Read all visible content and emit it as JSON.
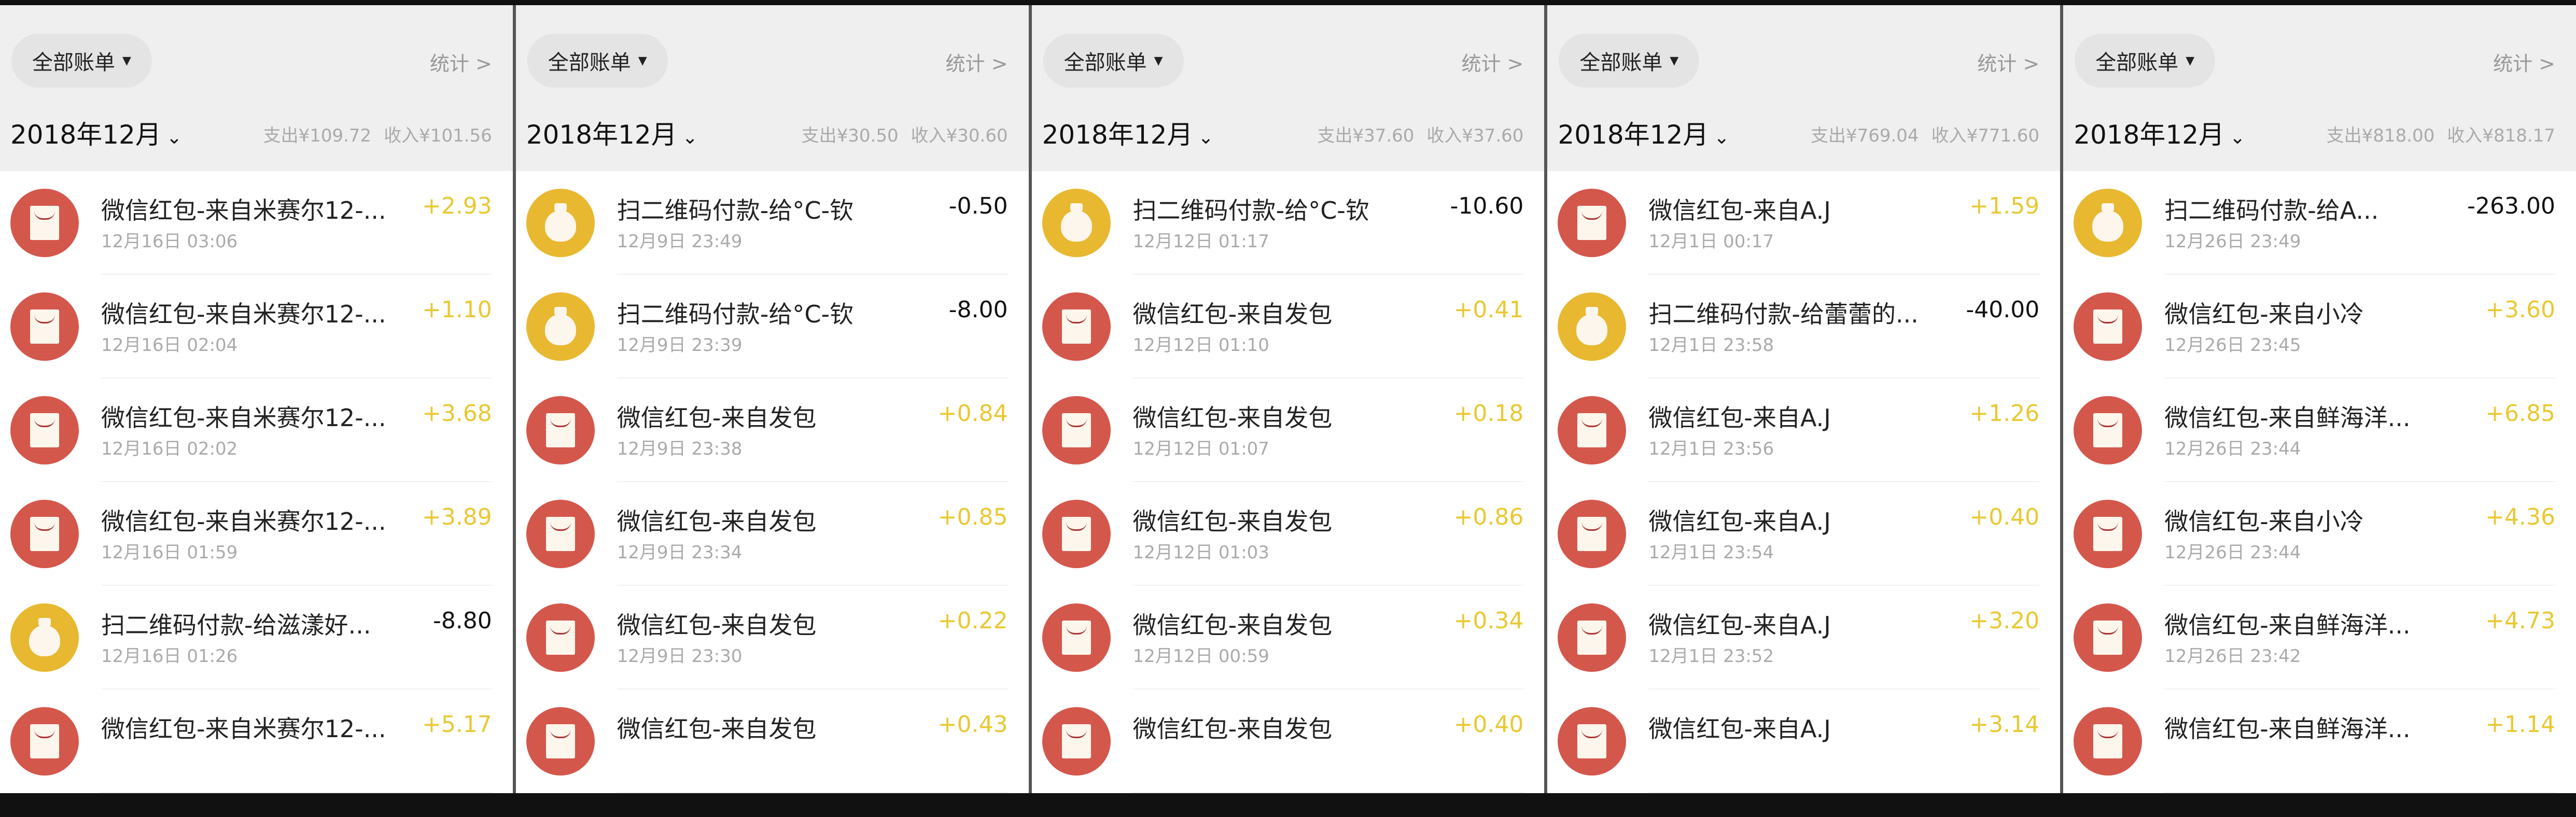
{
  "colors": {
    "income": "#e9c830",
    "expense": "#111111",
    "red_icon": "#d4574c",
    "yellow_icon": "#e8b830",
    "header_bg": "#efefef"
  },
  "panels": [
    {
      "filter": "全部账单",
      "stats": "统计 >",
      "month": "2018年12月",
      "expense": "支出¥109.72",
      "income": "收入¥101.56",
      "rows": [
        {
          "icon": "red-envelope-icon",
          "title": "微信红包-来自米赛尔12-...",
          "date": "12月16日 03:06",
          "amount": "+2.93"
        },
        {
          "icon": "red-envelope-icon",
          "title": "微信红包-来自米赛尔12-...",
          "date": "12月16日 02:04",
          "amount": "+1.10"
        },
        {
          "icon": "red-envelope-icon",
          "title": "微信红包-来自米赛尔12-...",
          "date": "12月16日 02:02",
          "amount": "+3.68"
        },
        {
          "icon": "red-envelope-icon",
          "title": "微信红包-来自米赛尔12-...",
          "date": "12月16日 01:59",
          "amount": "+3.89"
        },
        {
          "icon": "money-bag-icon",
          "title": "扫二维码付款-给滋漾好...",
          "date": "12月16日 01:26",
          "amount": "-8.80"
        },
        {
          "icon": "red-envelope-icon",
          "title": "微信红包-来自米赛尔12-...",
          "date": "",
          "amount": "+5.17"
        }
      ]
    },
    {
      "filter": "全部账单",
      "stats": "统计 >",
      "month": "2018年12月",
      "expense": "支出¥30.50",
      "income": "收入¥30.60",
      "rows": [
        {
          "icon": "money-bag-icon",
          "title": "扫二维码付款-给°C-钦",
          "date": "12月9日 23:49",
          "amount": "-0.50"
        },
        {
          "icon": "money-bag-icon",
          "title": "扫二维码付款-给°C-钦",
          "date": "12月9日 23:39",
          "amount": "-8.00"
        },
        {
          "icon": "red-envelope-icon",
          "title": "微信红包-来自发包",
          "date": "12月9日 23:38",
          "amount": "+0.84"
        },
        {
          "icon": "red-envelope-icon",
          "title": "微信红包-来自发包",
          "date": "12月9日 23:34",
          "amount": "+0.85"
        },
        {
          "icon": "red-envelope-icon",
          "title": "微信红包-来自发包",
          "date": "12月9日 23:30",
          "amount": "+0.22"
        },
        {
          "icon": "red-envelope-icon",
          "title": "微信红包-来自发包",
          "date": "",
          "amount": "+0.43"
        }
      ]
    },
    {
      "filter": "全部账单",
      "stats": "统计 >",
      "month": "2018年12月",
      "expense": "支出¥37.60",
      "income": "收入¥37.60",
      "rows": [
        {
          "icon": "money-bag-icon",
          "title": "扫二维码付款-给°C-钦",
          "date": "12月12日 01:17",
          "amount": "-10.60"
        },
        {
          "icon": "red-envelope-icon",
          "title": "微信红包-来自发包",
          "date": "12月12日 01:10",
          "amount": "+0.41"
        },
        {
          "icon": "red-envelope-icon",
          "title": "微信红包-来自发包",
          "date": "12月12日 01:07",
          "amount": "+0.18"
        },
        {
          "icon": "red-envelope-icon",
          "title": "微信红包-来自发包",
          "date": "12月12日 01:03",
          "amount": "+0.86"
        },
        {
          "icon": "red-envelope-icon",
          "title": "微信红包-来自发包",
          "date": "12月12日 00:59",
          "amount": "+0.34"
        },
        {
          "icon": "red-envelope-icon",
          "title": "微信红包-来自发包",
          "date": "",
          "amount": "+0.40"
        }
      ]
    },
    {
      "filter": "全部账单",
      "stats": "统计 >",
      "month": "2018年12月",
      "expense": "支出¥769.04",
      "income": "收入¥771.60",
      "rows": [
        {
          "icon": "red-envelope-icon",
          "title": "微信红包-来自A.J",
          "date": "12月1日 00:17",
          "amount": "+1.59"
        },
        {
          "icon": "money-bag-icon",
          "title": "扫二维码付款-给蕾蕾的...",
          "date": "12月1日 23:58",
          "amount": "-40.00"
        },
        {
          "icon": "red-envelope-icon",
          "title": "微信红包-来自A.J",
          "date": "12月1日 23:56",
          "amount": "+1.26"
        },
        {
          "icon": "red-envelope-icon",
          "title": "微信红包-来自A.J",
          "date": "12月1日 23:54",
          "amount": "+0.40"
        },
        {
          "icon": "red-envelope-icon",
          "title": "微信红包-来自A.J",
          "date": "12月1日 23:52",
          "amount": "+3.20"
        },
        {
          "icon": "red-envelope-icon",
          "title": "微信红包-来自A.J",
          "date": "",
          "amount": "+3.14"
        }
      ]
    },
    {
      "filter": "全部账单",
      "stats": "统计 >",
      "month": "2018年12月",
      "expense": "支出¥818.00",
      "income": "收入¥818.17",
      "rows": [
        {
          "icon": "money-bag-icon",
          "title": "扫二维码付款-给A...",
          "date": "12月26日 23:49",
          "amount": "-263.00"
        },
        {
          "icon": "red-envelope-icon",
          "title": "微信红包-来自小冷",
          "date": "12月26日 23:45",
          "amount": "+3.60"
        },
        {
          "icon": "red-envelope-icon",
          "title": "微信红包-来自鲜海洋...",
          "date": "12月26日 23:44",
          "amount": "+6.85"
        },
        {
          "icon": "red-envelope-icon",
          "title": "微信红包-来自小冷",
          "date": "12月26日 23:44",
          "amount": "+4.36"
        },
        {
          "icon": "red-envelope-icon",
          "title": "微信红包-来自鲜海洋...",
          "date": "12月26日 23:42",
          "amount": "+4.73"
        },
        {
          "icon": "red-envelope-icon",
          "title": "微信红包-来自鲜海洋...",
          "date": "",
          "amount": "+1.14"
        }
      ]
    }
  ]
}
